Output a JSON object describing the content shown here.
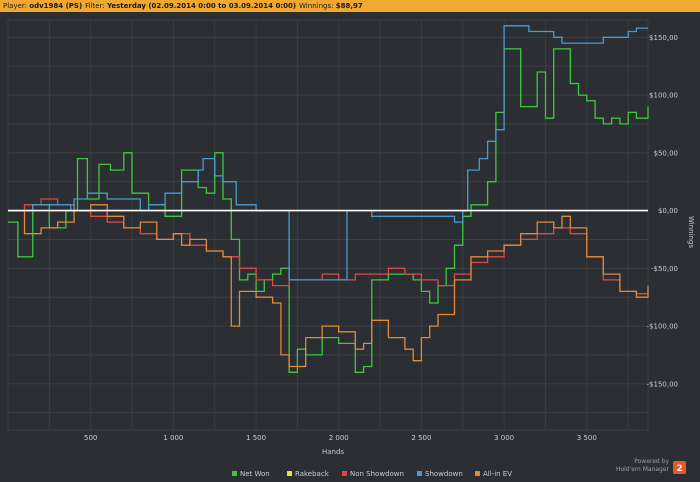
{
  "header": {
    "player_label": "Player:",
    "player": "odv1984 (PS)",
    "filter_label": "Filter:",
    "filter": "Yesterday (02.09.2014 0:00 to 03.09.2014 0:00)",
    "winnings_label": "Winnings:",
    "winnings": "$88,97"
  },
  "branding": {
    "line1": "Powered by",
    "line2": "Hold'em Manager",
    "badge": "2"
  },
  "colors": {
    "background": "#2b2e33",
    "header": "#f0a830",
    "zero_line": "#ffffff",
    "grid": "#3c4046"
  },
  "chart_data": {
    "type": "line",
    "xlabel": "Hands",
    "ylabel": "Winnings",
    "xlim": [
      0,
      3870
    ],
    "ylim": [
      -190,
      165
    ],
    "x_ticks": [
      500,
      1000,
      1500,
      2000,
      2500,
      3000,
      3500
    ],
    "x_tick_labels": [
      "500",
      "1 000",
      "1 500",
      "2 000",
      "2 500",
      "3 000",
      "3 500"
    ],
    "y_ticks": [
      150,
      100,
      50,
      0,
      -50,
      -100,
      -150
    ],
    "y_tick_labels": [
      "$150,00",
      "$100,00",
      "$50,00",
      "$0,00",
      "-$50,00",
      "-$100,00",
      "-$150,00"
    ],
    "legend_position": "bottom-center",
    "grid": true,
    "series": [
      {
        "name": "Net Won",
        "color": "#3ec83e",
        "x": [
          0,
          60,
          150,
          250,
          350,
          420,
          480,
          550,
          620,
          700,
          750,
          850,
          950,
          1050,
          1150,
          1200,
          1250,
          1300,
          1350,
          1400,
          1450,
          1500,
          1550,
          1600,
          1650,
          1700,
          1750,
          1800,
          1900,
          2000,
          2100,
          2150,
          2200,
          2300,
          2400,
          2450,
          2500,
          2550,
          2600,
          2650,
          2700,
          2750,
          2800,
          2900,
          2950,
          3000,
          3100,
          3200,
          3250,
          3300,
          3400,
          3450,
          3500,
          3550,
          3600,
          3650,
          3700,
          3750,
          3800,
          3870
        ],
        "y": [
          -10,
          -40,
          5,
          -15,
          0,
          45,
          10,
          40,
          35,
          50,
          15,
          5,
          -5,
          35,
          20,
          15,
          50,
          10,
          -25,
          -60,
          -55,
          -70,
          -60,
          -55,
          -50,
          -140,
          -120,
          -125,
          -110,
          -115,
          -140,
          -135,
          -60,
          -55,
          -55,
          -60,
          -70,
          -80,
          -65,
          -50,
          -30,
          -5,
          5,
          25,
          85,
          140,
          90,
          120,
          80,
          140,
          110,
          100,
          95,
          80,
          75,
          80,
          75,
          85,
          80,
          90
        ]
      },
      {
        "name": "Rakeback",
        "color": "#e8e040",
        "x": [
          0,
          3870
        ],
        "y": [
          0,
          0
        ]
      },
      {
        "name": "Non Showdown",
        "color": "#e04848",
        "x": [
          0,
          100,
          200,
          300,
          400,
          500,
          600,
          700,
          800,
          900,
          1000,
          1100,
          1200,
          1300,
          1400,
          1500,
          1600,
          1700,
          1800,
          1900,
          2000,
          2100,
          2200,
          2300,
          2400,
          2500,
          2600,
          2700,
          2800,
          2900,
          3000,
          3100,
          3200,
          3300,
          3400,
          3500,
          3600,
          3700,
          3800,
          3870
        ],
        "y": [
          0,
          5,
          10,
          5,
          0,
          -5,
          -10,
          -15,
          -20,
          -25,
          -20,
          -30,
          -35,
          -40,
          -50,
          -60,
          -65,
          -60,
          -60,
          -55,
          -60,
          -55,
          -55,
          -50,
          -55,
          -60,
          -65,
          -55,
          -45,
          -40,
          -30,
          -25,
          -20,
          -15,
          -20,
          -40,
          -60,
          -70,
          -72,
          -68
        ]
      },
      {
        "name": "Showdown",
        "color": "#4a9ad0",
        "x": [
          0,
          150,
          300,
          380,
          400,
          480,
          600,
          800,
          850,
          950,
          1050,
          1150,
          1180,
          1250,
          1300,
          1380,
          1500,
          1550,
          1650,
          1700,
          1800,
          1900,
          2000,
          2050,
          2100,
          2200,
          2300,
          2400,
          2500,
          2600,
          2700,
          2750,
          2780,
          2850,
          2900,
          2950,
          3000,
          3050,
          3150,
          3300,
          3350,
          3500,
          3600,
          3700,
          3750,
          3800,
          3870
        ],
        "y": [
          0,
          5,
          5,
          0,
          10,
          15,
          10,
          0,
          5,
          15,
          25,
          35,
          45,
          30,
          25,
          5,
          0,
          0,
          0,
          -60,
          -60,
          -60,
          -60,
          0,
          0,
          -5,
          -5,
          -5,
          -5,
          -5,
          -10,
          0,
          35,
          45,
          60,
          70,
          160,
          160,
          155,
          150,
          145,
          145,
          150,
          150,
          155,
          158,
          158
        ]
      },
      {
        "name": "All-in EV",
        "color": "#e08a3a",
        "x": [
          0,
          100,
          200,
          300,
          400,
          500,
          600,
          700,
          800,
          900,
          1000,
          1050,
          1100,
          1200,
          1300,
          1350,
          1400,
          1500,
          1600,
          1650,
          1700,
          1800,
          1900,
          2000,
          2100,
          2150,
          2200,
          2300,
          2400,
          2450,
          2500,
          2550,
          2600,
          2700,
          2800,
          2900,
          3000,
          3100,
          3200,
          3300,
          3350,
          3400,
          3500,
          3600,
          3700,
          3800,
          3870
        ],
        "y": [
          0,
          -20,
          -15,
          -10,
          0,
          5,
          -5,
          -15,
          -10,
          -25,
          -20,
          -30,
          -25,
          -35,
          -40,
          -100,
          -70,
          -75,
          -80,
          -125,
          -135,
          -110,
          -100,
          -105,
          -120,
          -115,
          -95,
          -110,
          -120,
          -130,
          -110,
          -100,
          -90,
          -60,
          -40,
          -35,
          -30,
          -20,
          -10,
          -15,
          -5,
          -15,
          -40,
          -55,
          -70,
          -75,
          -65
        ]
      }
    ]
  }
}
